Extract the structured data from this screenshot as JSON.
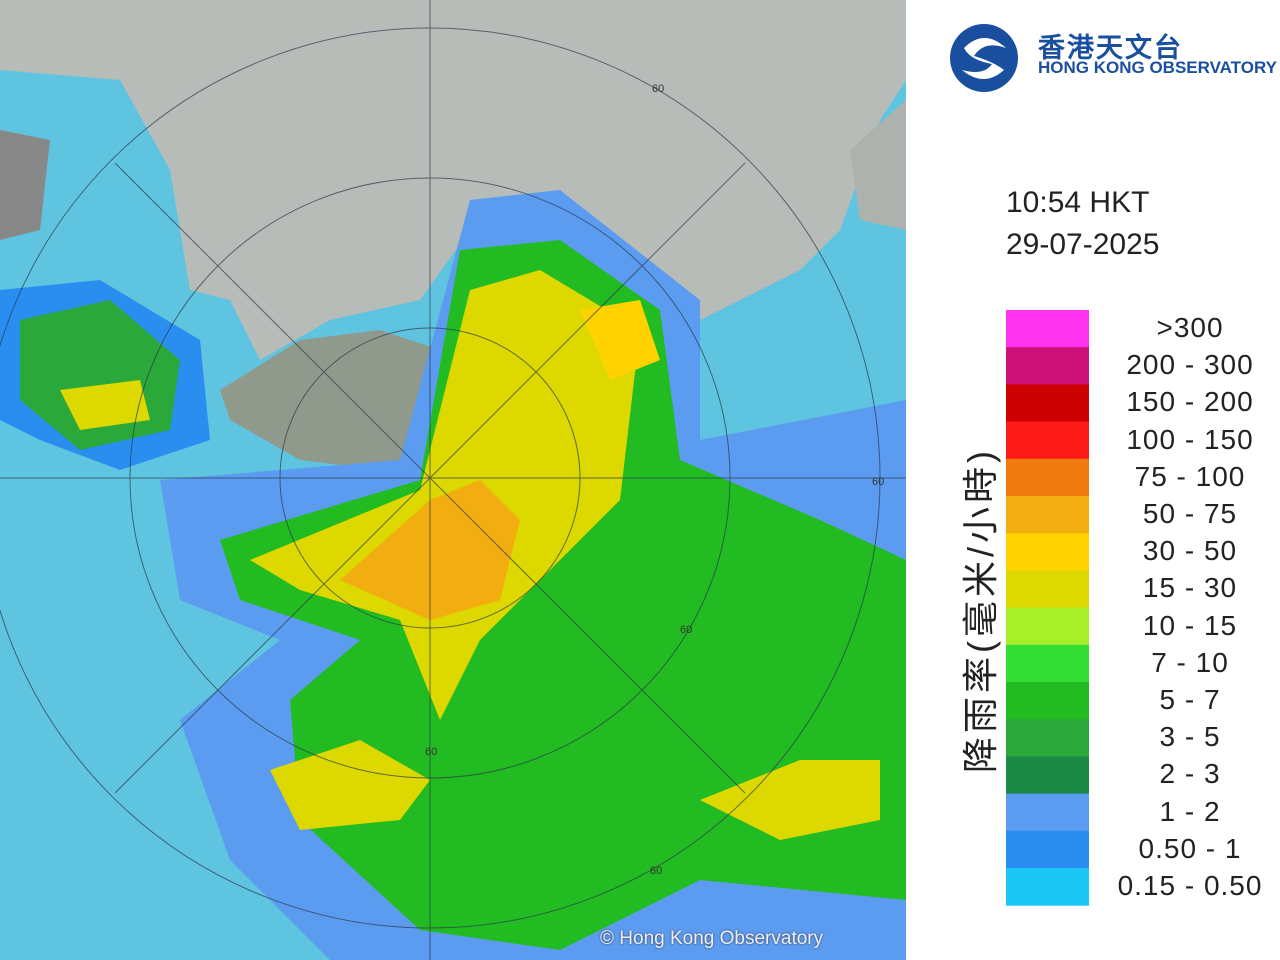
{
  "header": {
    "logo_chinese": "香港天文台",
    "logo_english": "HONG KONG OBSERVATORY",
    "time": "10:54 HKT",
    "date": "29-07-2025"
  },
  "legend": {
    "title": "降雨率(毫米/小時)",
    "items": [
      {
        "label": ">300",
        "color": "#ff33ee"
      },
      {
        "label": "200 - 300",
        "color": "#cc1177"
      },
      {
        "label": "150 - 200",
        "color": "#cc0000"
      },
      {
        "label": "100 - 150",
        "color": "#ff1a1a"
      },
      {
        "label": "75 - 100",
        "color": "#f07a10"
      },
      {
        "label": "50 - 75",
        "color": "#f2ad10"
      },
      {
        "label": "30 - 50",
        "color": "#ffd200"
      },
      {
        "label": "15 - 30",
        "color": "#dcd800"
      },
      {
        "label": "10 - 15",
        "color": "#a8ef2a"
      },
      {
        "label": "7 - 10",
        "color": "#33dd33"
      },
      {
        "label": "5 - 7",
        "color": "#22bb22"
      },
      {
        "label": "3 - 5",
        "color": "#2aa83a"
      },
      {
        "label": "2 - 3",
        "color": "#1b8a45"
      },
      {
        "label": "1 - 2",
        "color": "#5b9cf0"
      },
      {
        "label": "0.50 - 1",
        "color": "#2a8ef0"
      },
      {
        "label": "0.15 - 0.50",
        "color": "#1cc6f5"
      }
    ]
  },
  "map": {
    "ring_labels": [
      "60",
      "60",
      "60",
      "60",
      "60"
    ],
    "copyright": "© Hong Kong Observatory"
  }
}
